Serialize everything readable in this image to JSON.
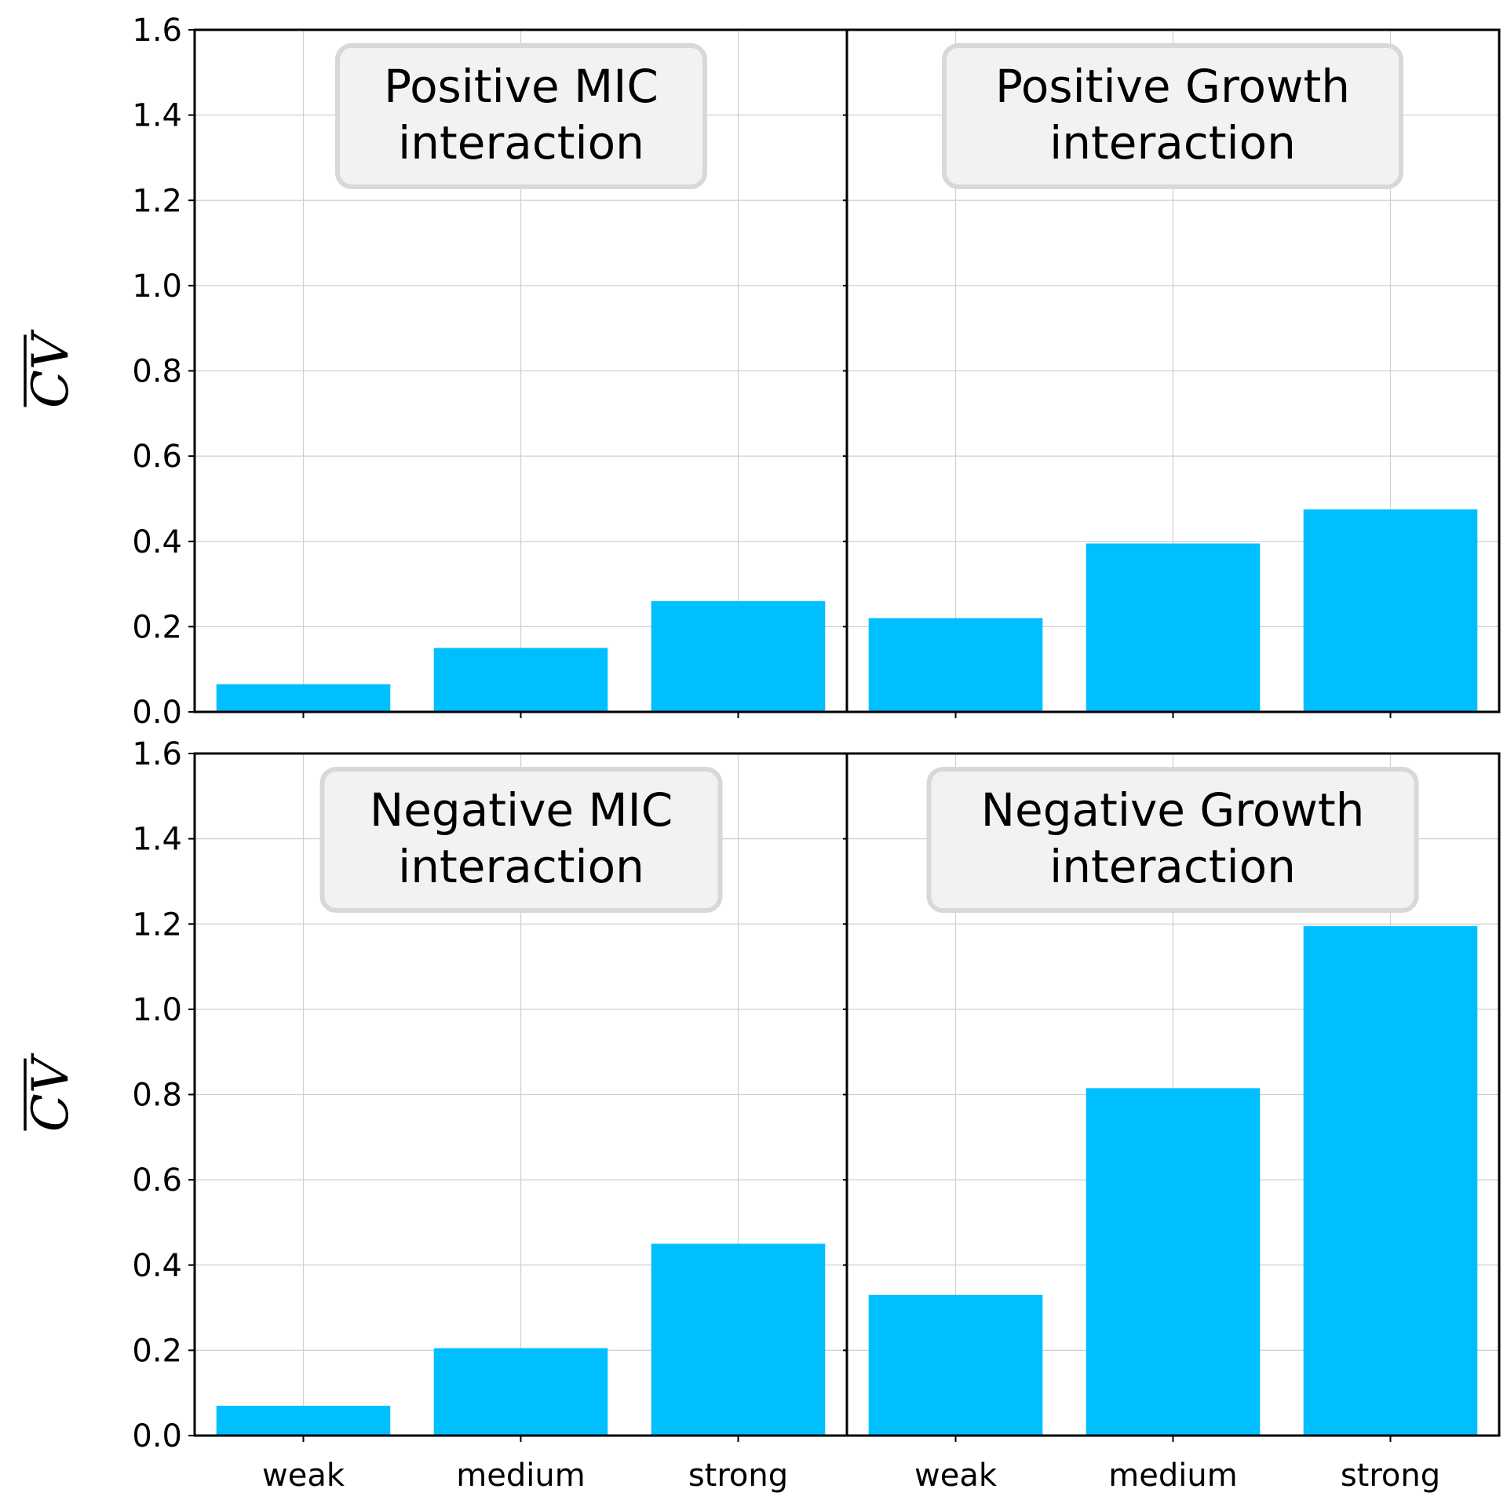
{
  "chart_data": {
    "type": "bar",
    "layout": "2x2 grid, shared x and y axes",
    "categories": [
      "weak",
      "medium",
      "strong"
    ],
    "ylabel": "CV",
    "ylim": [
      0,
      1.6
    ],
    "yticks": [
      "0.0",
      "0.2",
      "0.4",
      "0.6",
      "0.8",
      "1.0",
      "1.2",
      "1.4",
      "1.6"
    ],
    "grid": true,
    "bar_color": "#00BFFF",
    "annotation_box_color": "#F2F2F2",
    "panels": [
      {
        "annotation": [
          "Positive MIC",
          "interaction"
        ],
        "values": [
          0.065,
          0.15,
          0.26
        ]
      },
      {
        "annotation": [
          "Positive Growth",
          "interaction"
        ],
        "values": [
          0.22,
          0.395,
          0.475
        ]
      },
      {
        "annotation": [
          "Negative MIC",
          "interaction"
        ],
        "values": [
          0.07,
          0.205,
          0.45
        ]
      },
      {
        "annotation": [
          "Negative Growth",
          "interaction"
        ],
        "values": [
          0.33,
          0.815,
          1.195
        ]
      }
    ]
  }
}
